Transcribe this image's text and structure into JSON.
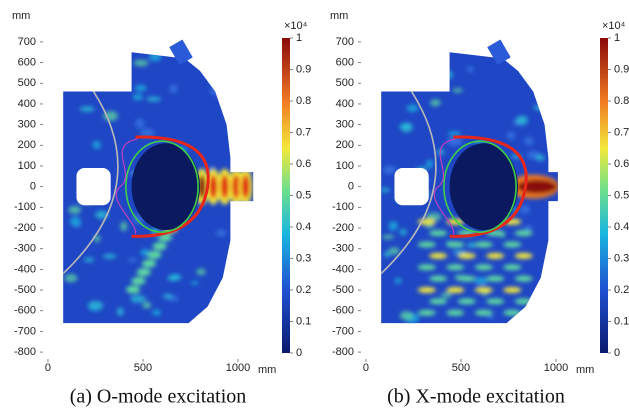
{
  "chart_data": [
    {
      "type": "heatmap",
      "caption": "(a) O-mode excitation",
      "x_unit": "mm",
      "y_unit": "mm",
      "xlim": [
        -42,
        1179
      ],
      "ylim": [
        -848,
        864
      ],
      "xticks": [
        0,
        500,
        1000
      ],
      "yticks": [
        700,
        600,
        500,
        400,
        300,
        200,
        100,
        0,
        -100,
        -200,
        -300,
        -400,
        -500,
        -600,
        -700,
        -800
      ],
      "colorbar_label": "×10⁴",
      "clim": [
        0,
        1
      ],
      "colorbar_ticks": [
        1,
        0.9,
        0.8,
        0.7,
        0.6,
        0.5,
        0.4,
        0.3,
        0.2,
        0.1,
        0
      ]
    },
    {
      "type": "heatmap",
      "caption": "(b) X-mode excitation",
      "x_unit": "mm",
      "y_unit": "mm",
      "xlim": [
        -42,
        1179
      ],
      "ylim": [
        -848,
        864
      ],
      "xticks": [
        0,
        500,
        1000
      ],
      "yticks": [
        700,
        600,
        500,
        400,
        300,
        200,
        100,
        0,
        -100,
        -200,
        -300,
        -400,
        -500,
        -600,
        -700,
        -800
      ],
      "colorbar_label": "×10⁴",
      "clim": [
        0,
        1
      ],
      "colorbar_ticks": [
        1,
        0.9,
        0.8,
        0.7,
        0.6,
        0.5,
        0.4,
        0.3,
        0.2,
        0.1,
        0
      ]
    }
  ]
}
